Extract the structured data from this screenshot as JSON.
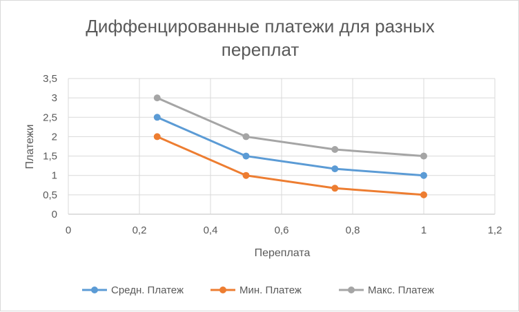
{
  "chart_data": {
    "type": "line",
    "title_lines": [
      "Диффенцированные платежи для разных",
      "переплат"
    ],
    "xlabel": "Переплата",
    "ylabel": "Платежи",
    "xlim": [
      0,
      1.2
    ],
    "ylim": [
      0,
      3.5
    ],
    "x_ticks": [
      0,
      0.2,
      0.4,
      0.6,
      0.8,
      1,
      1.2
    ],
    "x_tick_labels": [
      "0",
      "0,2",
      "0,4",
      "0,6",
      "0,8",
      "1",
      "1,2"
    ],
    "y_ticks": [
      0,
      0.5,
      1,
      1.5,
      2,
      2.5,
      3,
      3.5
    ],
    "y_tick_labels": [
      "0",
      "0,5",
      "1",
      "1,5",
      "2",
      "2,5",
      "3",
      "3,5"
    ],
    "grid": true,
    "legend_position": "bottom",
    "series": [
      {
        "name": "Средн. Платеж",
        "color": "#5b9bd5",
        "x": [
          0.25,
          0.5,
          0.75,
          1
        ],
        "y": [
          2.5,
          1.5,
          1.17,
          1.0
        ]
      },
      {
        "name": "Мин. Платеж",
        "color": "#ed7d31",
        "x": [
          0.25,
          0.5,
          0.75,
          1
        ],
        "y": [
          2.0,
          1.0,
          0.67,
          0.5
        ]
      },
      {
        "name": "Макс. Платеж",
        "color": "#a5a5a5",
        "x": [
          0.25,
          0.5,
          0.75,
          1
        ],
        "y": [
          3.0,
          2.0,
          1.67,
          1.5
        ]
      }
    ]
  }
}
